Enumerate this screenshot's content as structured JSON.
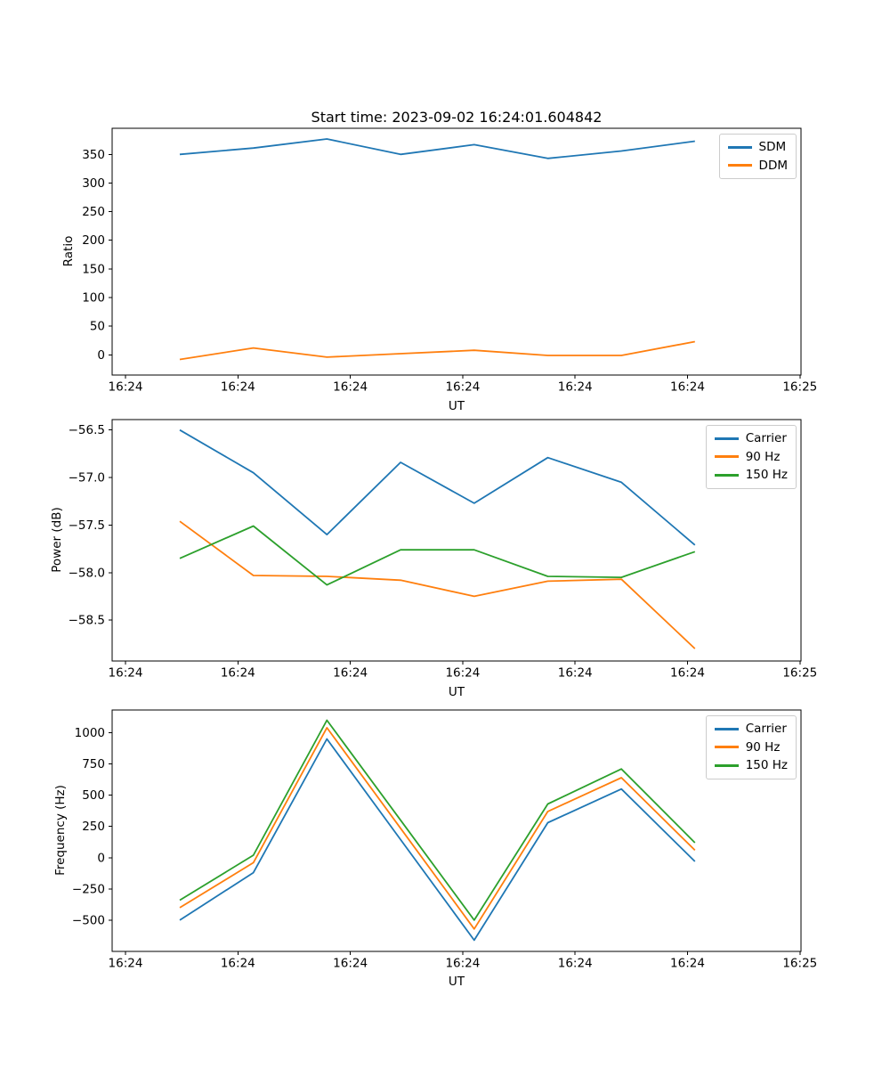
{
  "figure_title": "Start time: 2023-09-02 16:24:01.604842",
  "chart_data": [
    {
      "type": "line",
      "title": "Start time: 2023-09-02 16:24:01.604842",
      "xlabel": "UT",
      "ylabel": "Ratio",
      "x_tick_labels": [
        "16:24",
        "16:24",
        "16:24",
        "16:24",
        "16:24",
        "16:24",
        "16:25"
      ],
      "x_tick_seconds": [
        0,
        10,
        20,
        30,
        40,
        50,
        60
      ],
      "x_seconds": [
        4.83,
        11.38,
        17.92,
        24.47,
        31.02,
        37.57,
        44.12,
        50.66
      ],
      "y_ticks": [
        350,
        300,
        250,
        200,
        150,
        100,
        50,
        0
      ],
      "y_tick_decimals": 0,
      "ylim": [
        -35.3,
        395.6
      ],
      "grid": false,
      "legend_position": "upper right",
      "series": [
        {
          "name": "SDM",
          "color": "#1f77b4",
          "values": [
            350,
            361,
            377,
            350,
            367,
            343,
            356,
            373
          ]
        },
        {
          "name": "DDM",
          "color": "#ff7f0e",
          "values": [
            -8,
            12,
            -4,
            2,
            8,
            -1,
            -1,
            23
          ]
        }
      ]
    },
    {
      "type": "line",
      "title": "",
      "xlabel": "UT",
      "ylabel": "Power (dB)",
      "x_tick_labels": [
        "16:24",
        "16:24",
        "16:24",
        "16:24",
        "16:24",
        "16:24",
        "16:25"
      ],
      "x_tick_seconds": [
        0,
        10,
        20,
        30,
        40,
        50,
        60
      ],
      "x_seconds": [
        4.83,
        11.38,
        17.92,
        24.47,
        31.02,
        37.57,
        44.12,
        50.66
      ],
      "y_ticks": [
        -56.5,
        -57.0,
        -57.5,
        -58.0,
        -58.5
      ],
      "y_tick_decimals": 1,
      "ylim": [
        -58.93,
        -56.39
      ],
      "grid": false,
      "legend_position": "upper right",
      "series": [
        {
          "name": "Carrier",
          "color": "#1f77b4",
          "values": [
            -56.5,
            -56.95,
            -57.6,
            -56.84,
            -57.27,
            -56.79,
            -57.05,
            -57.71
          ]
        },
        {
          "name": "90 Hz",
          "color": "#ff7f0e",
          "values": [
            -57.46,
            -58.03,
            -58.04,
            -58.08,
            -58.25,
            -58.09,
            -58.07,
            -58.8
          ]
        },
        {
          "name": "150 Hz",
          "color": "#2ca02c",
          "values": [
            -57.85,
            -57.51,
            -58.13,
            -57.76,
            -57.76,
            -58.04,
            -58.05,
            -57.78
          ]
        }
      ]
    },
    {
      "type": "line",
      "title": "",
      "xlabel": "UT",
      "ylabel": "Frequency (Hz)",
      "x_tick_labels": [
        "16:24",
        "16:24",
        "16:24",
        "16:24",
        "16:24",
        "16:24",
        "16:25"
      ],
      "x_tick_seconds": [
        0,
        10,
        20,
        30,
        40,
        50,
        60
      ],
      "x_seconds": [
        4.83,
        11.38,
        17.92,
        24.47,
        31.02,
        37.57,
        44.12,
        50.66
      ],
      "y_ticks": [
        1000,
        750,
        500,
        250,
        0,
        -250,
        -500
      ],
      "y_tick_decimals": 0,
      "ylim": [
        -750,
        1182
      ],
      "grid": false,
      "legend_position": "upper right",
      "series": [
        {
          "name": "Carrier",
          "color": "#1f77b4",
          "values": [
            -500,
            -120,
            950,
            145,
            -660,
            280,
            550,
            -30
          ]
        },
        {
          "name": "90 Hz",
          "color": "#ff7f0e",
          "values": [
            -400,
            -40,
            1040,
            235,
            -570,
            370,
            640,
            60
          ]
        },
        {
          "name": "150 Hz",
          "color": "#2ca02c",
          "values": [
            -340,
            20,
            1100,
            300,
            -500,
            430,
            710,
            120
          ]
        }
      ]
    }
  ]
}
